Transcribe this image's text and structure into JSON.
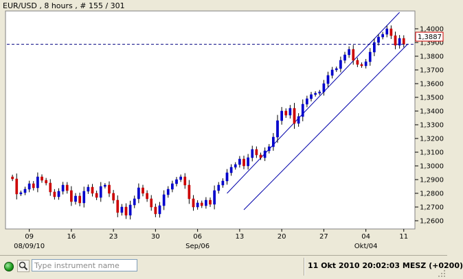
{
  "chart_data": {
    "type": "candlestick",
    "title": "EUR/USD , 8 hours , # 155 / 301",
    "current_price_label": "1,3887",
    "current_price": 1.3887,
    "ylim": [
      1.255,
      1.412
    ],
    "y_ticks": [
      {
        "value": 1.4,
        "label": "1,4000"
      },
      {
        "value": 1.39,
        "label": "1,3900"
      },
      {
        "value": 1.38,
        "label": "1,3800"
      },
      {
        "value": 1.37,
        "label": "1,3700"
      },
      {
        "value": 1.36,
        "label": "1,3600"
      },
      {
        "value": 1.35,
        "label": "1,3500"
      },
      {
        "value": 1.34,
        "label": "1,3400"
      },
      {
        "value": 1.33,
        "label": "1,3300"
      },
      {
        "value": 1.32,
        "label": "1,3200"
      },
      {
        "value": 1.31,
        "label": "1,3100"
      },
      {
        "value": 1.3,
        "label": "1,3000"
      },
      {
        "value": 1.29,
        "label": "1,2900"
      },
      {
        "value": 1.28,
        "label": "1,2800"
      },
      {
        "value": 1.27,
        "label": "1,2700"
      },
      {
        "value": 1.26,
        "label": "1,2600"
      }
    ],
    "x_range": [
      0,
      96
    ],
    "x_ticks": [
      {
        "index": 5,
        "label": "09",
        "sublabel": "08/09/10"
      },
      {
        "index": 15,
        "label": "16",
        "sublabel": ""
      },
      {
        "index": 25,
        "label": "23",
        "sublabel": ""
      },
      {
        "index": 35,
        "label": "30",
        "sublabel": ""
      },
      {
        "index": 45,
        "label": "06",
        "sublabel": "Sep/06"
      },
      {
        "index": 55,
        "label": "13",
        "sublabel": ""
      },
      {
        "index": 65,
        "label": "20",
        "sublabel": ""
      },
      {
        "index": 75,
        "label": "27",
        "sublabel": ""
      },
      {
        "index": 85,
        "label": "04",
        "sublabel": "Okt/04"
      },
      {
        "index": 94,
        "label": "11",
        "sublabel": ""
      }
    ],
    "closes": [
      1.292,
      1.2905,
      1.2795,
      1.2805,
      1.283,
      1.287,
      1.284,
      1.292,
      1.2895,
      1.2875,
      1.281,
      1.2775,
      1.2815,
      1.286,
      1.282,
      1.274,
      1.278,
      1.273,
      1.2815,
      1.2845,
      1.28,
      1.277,
      1.285,
      1.286,
      1.28,
      1.275,
      1.266,
      1.27,
      1.264,
      1.2715,
      1.276,
      1.284,
      1.28,
      1.276,
      1.27,
      1.265,
      1.271,
      1.279,
      1.283,
      1.287,
      1.29,
      1.292,
      1.286,
      1.276,
      1.27,
      1.273,
      1.271,
      1.275,
      1.272,
      1.282,
      1.286,
      1.289,
      1.295,
      1.299,
      1.301,
      1.305,
      1.3,
      1.306,
      1.312,
      1.308,
      1.306,
      1.311,
      1.314,
      1.321,
      1.333,
      1.34,
      1.337,
      1.342,
      1.331,
      1.336,
      1.345,
      1.349,
      1.352,
      1.353,
      1.354,
      1.36,
      1.366,
      1.37,
      1.371,
      1.377,
      1.381,
      1.385,
      1.377,
      1.374,
      1.373,
      1.376,
      1.383,
      1.39,
      1.394,
      1.396,
      1.4,
      1.395,
      1.388,
      1.393,
      1.3887
    ],
    "channel": {
      "upper": [
        {
          "index": 52,
          "value": 1.28
        },
        {
          "index": 93,
          "value": 1.412
        }
      ],
      "lower": [
        {
          "index": 56,
          "value": 1.268
        },
        {
          "index": 95,
          "value": 1.389
        }
      ]
    },
    "colors": {
      "up": "#0000cc",
      "down": "#cc0000",
      "channel": "#0000aa",
      "price_line": "#000080",
      "price_label_border": "#cc0000",
      "background": "#ffffff"
    }
  },
  "status_bar": {
    "search_placeholder": "Type instrument name",
    "datetime": "11 Okt 2010 20:02:03",
    "timezone": "MESZ",
    "offset": "(+0200)"
  }
}
